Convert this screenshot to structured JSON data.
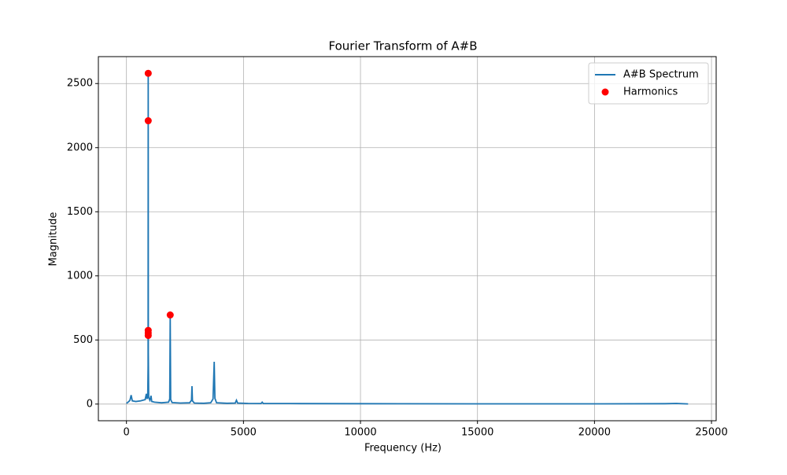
{
  "chart_data": {
    "type": "line",
    "title": "Fourier Transform of A#B",
    "x_label": "Frequency (Hz)",
    "y_label": "Magnitude",
    "xlim": [
      -1200,
      25200
    ],
    "ylim": [
      -130,
      2710
    ],
    "xticks": [
      0,
      5000,
      10000,
      15000,
      20000,
      25000
    ],
    "yticks": [
      0,
      500,
      1000,
      1500,
      2000,
      2500
    ],
    "grid": true,
    "legend": "upper right",
    "series": [
      {
        "name": "A#B Spectrum",
        "type": "line",
        "color": "#1f77b4",
        "x": [
          0,
          100,
          150,
          200,
          250,
          400,
          600,
          800,
          850,
          880,
          910,
          925,
          930,
          935,
          950,
          1000,
          1050,
          1080,
          1200,
          1500,
          1800,
          1850,
          1870,
          1890,
          1950,
          2300,
          2700,
          2780,
          2800,
          2820,
          2900,
          3300,
          3600,
          3700,
          3750,
          3780,
          3850,
          4300,
          4650,
          4700,
          4750,
          5200,
          5750,
          5800,
          5850,
          7000,
          10000,
          15000,
          20000,
          23000,
          23500,
          24000
        ],
        "values": [
          5,
          20,
          30,
          70,
          25,
          20,
          25,
          35,
          80,
          40,
          60,
          300,
          2580,
          400,
          50,
          30,
          65,
          20,
          15,
          10,
          15,
          40,
          690,
          35,
          12,
          8,
          10,
          30,
          140,
          25,
          8,
          6,
          10,
          40,
          330,
          45,
          10,
          6,
          8,
          30,
          8,
          5,
          4,
          15,
          4,
          4,
          3,
          2,
          2,
          3,
          5,
          1
        ]
      },
      {
        "name": "Harmonics",
        "type": "scatter",
        "color": "#ff0000",
        "x": [
          930,
          930,
          930,
          930,
          930,
          1870
        ],
        "values": [
          2580,
          2210,
          575,
          555,
          535,
          695
        ]
      }
    ]
  }
}
